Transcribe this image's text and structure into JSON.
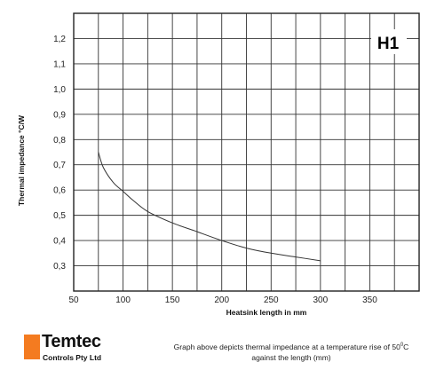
{
  "chart_data": {
    "type": "line",
    "badge": "H1",
    "xlabel": "Heatsink length in mm",
    "ylabel": "Thermal impedance °C/W",
    "xlim": [
      50,
      400
    ],
    "ylim": [
      0.2,
      1.3
    ],
    "x_ticks": [
      "50",
      "100",
      "150",
      "200",
      "250",
      "300",
      "350"
    ],
    "x_tick_values": [
      50,
      100,
      150,
      200,
      250,
      300,
      350
    ],
    "y_ticks": [
      "0,3",
      "0,4",
      "0,5",
      "0,6",
      "0,7",
      "0,8",
      "0,9",
      "1,0",
      "1,1",
      "1,2"
    ],
    "y_tick_values": [
      0.3,
      0.4,
      0.5,
      0.6,
      0.7,
      0.8,
      0.9,
      1.0,
      1.1,
      1.2
    ],
    "grid": true,
    "grid_x_step": 25,
    "grid_y_step": 0.1,
    "series": [
      {
        "x": [
          75,
          80,
          90,
          100,
          110,
          125,
          150,
          175,
          200,
          225,
          250,
          275,
          300
        ],
        "y": [
          0.75,
          0.69,
          0.63,
          0.595,
          0.56,
          0.515,
          0.47,
          0.435,
          0.4,
          0.37,
          0.35,
          0.335,
          0.32
        ]
      }
    ],
    "colors": {
      "line": "#333333",
      "grid": "#333333"
    }
  },
  "footer": {
    "logo_name": "Temtec",
    "logo_sub": "Controls Pty Ltd",
    "caption_line1_pre": "Graph above depicts thermal impedance at a temperature rise of 50",
    "caption_sup": "0",
    "caption_line1_post": "C",
    "caption_line2": "against the length (mm)",
    "brand_color": "#f47b20"
  }
}
